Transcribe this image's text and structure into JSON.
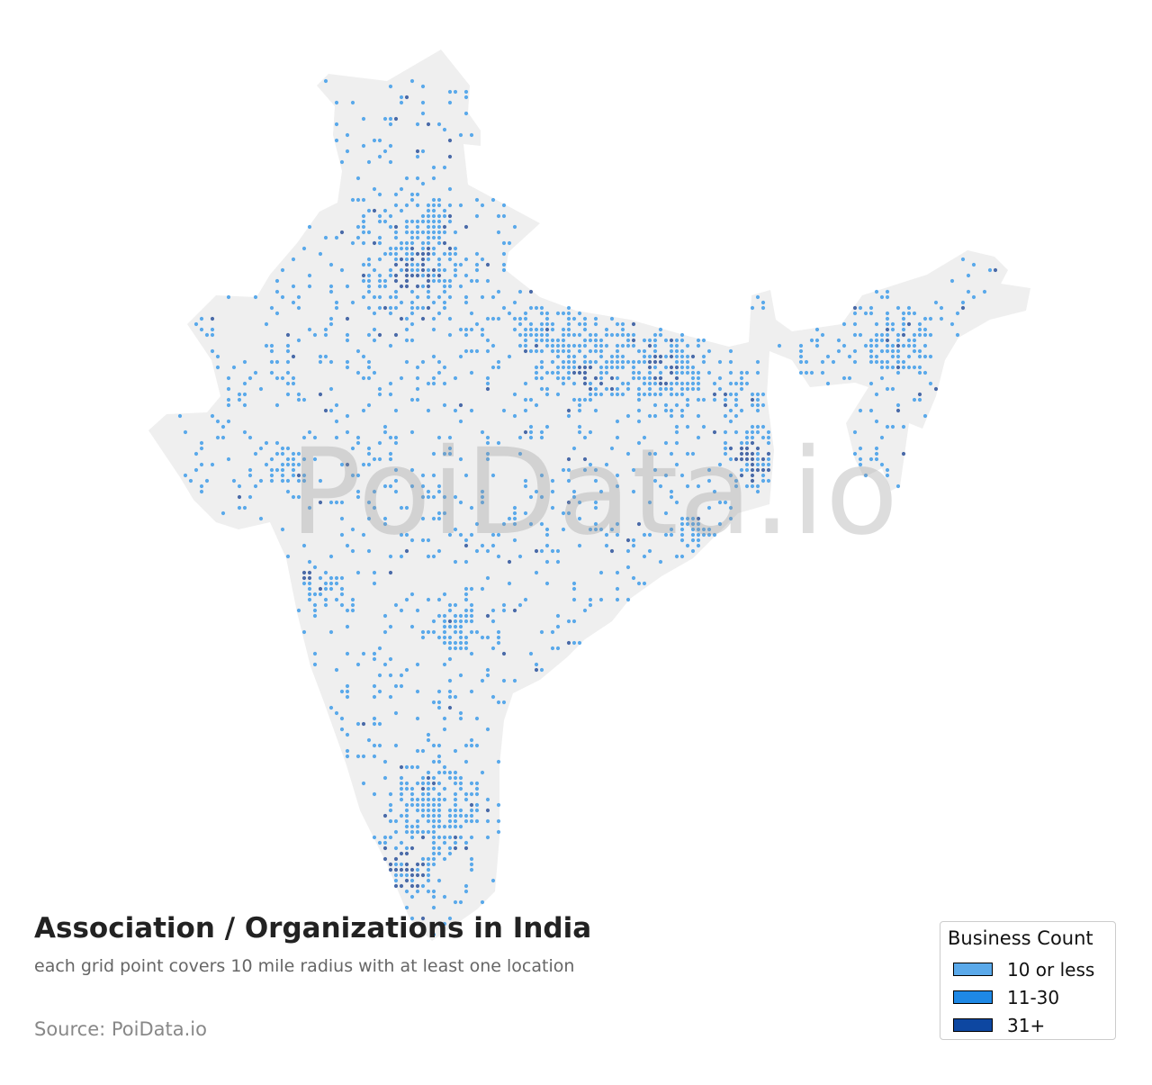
{
  "title": "Association / Organizations in India",
  "subtitle": "each grid point covers 10 mile radius with at least one location",
  "source": "Source: PoiData.io",
  "watermark": "PoiData.io",
  "legend": {
    "title": "Business Count",
    "items": [
      {
        "label": "10 or less",
        "color": "#5aa9ea"
      },
      {
        "label": "11-30",
        "color": "#1e88e5"
      },
      {
        "label": "31+",
        "color": "#0d47a1"
      }
    ]
  },
  "colors": {
    "land": "#efefef",
    "dot_low": "#5aa9ea",
    "dot_high": "#4a6aa8"
  },
  "map": {
    "country": "India",
    "grid_radius_miles": 10
  }
}
